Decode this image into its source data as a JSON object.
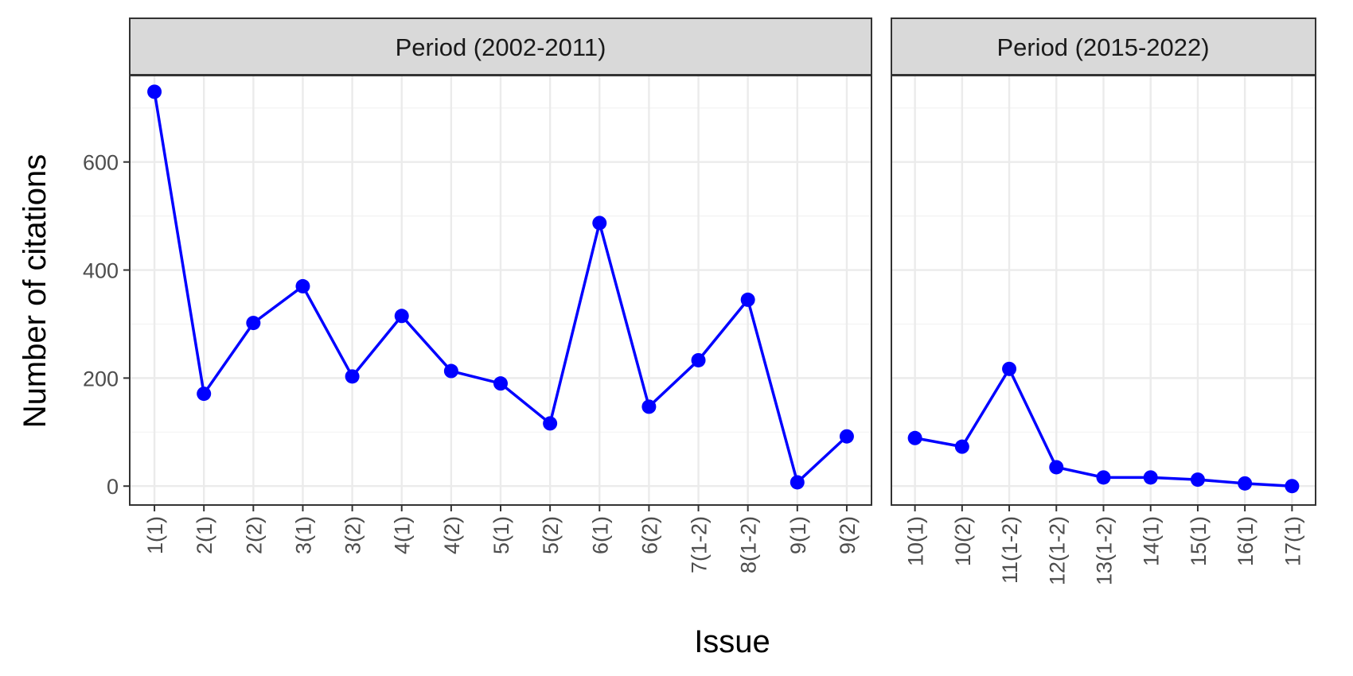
{
  "chart_data": {
    "type": "line",
    "xlabel": "Issue",
    "ylabel": "Number of citations",
    "ylim": [
      -35,
      760
    ],
    "yticks": [
      0,
      200,
      400,
      600
    ],
    "grid": true,
    "color": "#0000ff",
    "panels": [
      {
        "title": "Period (2002-2011)",
        "categories": [
          "1(1)",
          "2(1)",
          "2(2)",
          "3(1)",
          "3(2)",
          "4(1)",
          "4(2)",
          "5(1)",
          "5(2)",
          "6(1)",
          "6(2)",
          "7(1-2)",
          "8(1-2)",
          "9(1)",
          "9(2)"
        ],
        "values": [
          730,
          171,
          302,
          370,
          203,
          315,
          213,
          190,
          116,
          487,
          147,
          233,
          345,
          7,
          92
        ]
      },
      {
        "title": "Period (2015-2022)",
        "categories": [
          "10(1)",
          "10(2)",
          "11(1-2)",
          "12(1-2)",
          "13(1-2)",
          "14(1)",
          "15(1)",
          "16(1)",
          "17(1)"
        ],
        "values": [
          89,
          73,
          217,
          35,
          16,
          16,
          12,
          5,
          0
        ]
      }
    ]
  }
}
